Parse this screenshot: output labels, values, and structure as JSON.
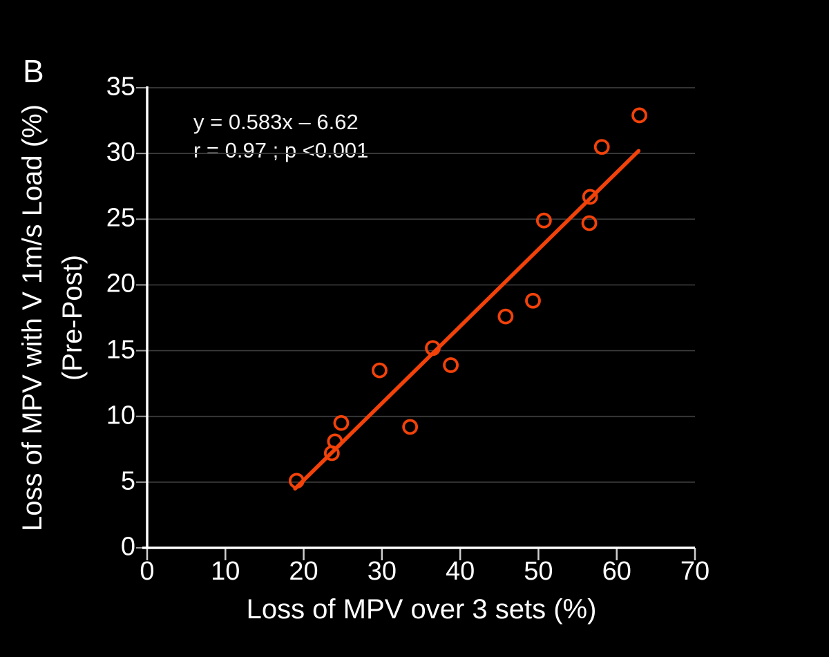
{
  "panel_label": "B",
  "colors": {
    "background": "#000000",
    "foreground": "#ffffff",
    "accent": "#f2420a",
    "gridline": "#3c3c3c",
    "y_tick": "#9b9b9b",
    "x_tick": "#cfcfcf"
  },
  "annotation": {
    "line1": "y = 0.583x – 6.62",
    "line2": "r = 0.97 ; p <0.001"
  },
  "chart_data": {
    "type": "scatter",
    "title": "",
    "xlabel": "Loss of MPV over 3 sets (%)",
    "ylabel_line1": "Loss of MPV with V 1m/s Load (%)",
    "ylabel_line2": "(Pre-Post)",
    "xlim": [
      0,
      70
    ],
    "ylim": [
      0,
      35
    ],
    "xticks": [
      0,
      10,
      20,
      30,
      40,
      50,
      60,
      70
    ],
    "yticks": [
      0,
      5,
      10,
      15,
      20,
      25,
      30,
      35
    ],
    "grid": "horizontal-only",
    "legend": "none",
    "marker": "open-circle",
    "points": [
      [
        19.1,
        5.1
      ],
      [
        23.6,
        7.2
      ],
      [
        24.0,
        8.1
      ],
      [
        24.8,
        9.5
      ],
      [
        29.7,
        13.5
      ],
      [
        33.6,
        9.2
      ],
      [
        36.5,
        15.2
      ],
      [
        38.8,
        13.9
      ],
      [
        45.8,
        17.6
      ],
      [
        49.3,
        18.8
      ],
      [
        50.7,
        24.9
      ],
      [
        56.5,
        24.7
      ],
      [
        56.6,
        26.7
      ],
      [
        58.1,
        30.5
      ],
      [
        62.9,
        32.9
      ]
    ],
    "regression": {
      "equation": "y = 0.583x - 6.62",
      "r": 0.97,
      "p": "<0.001",
      "x1": 18.9,
      "y1": 4.5,
      "x2": 62.8,
      "y2": 30.2
    }
  }
}
